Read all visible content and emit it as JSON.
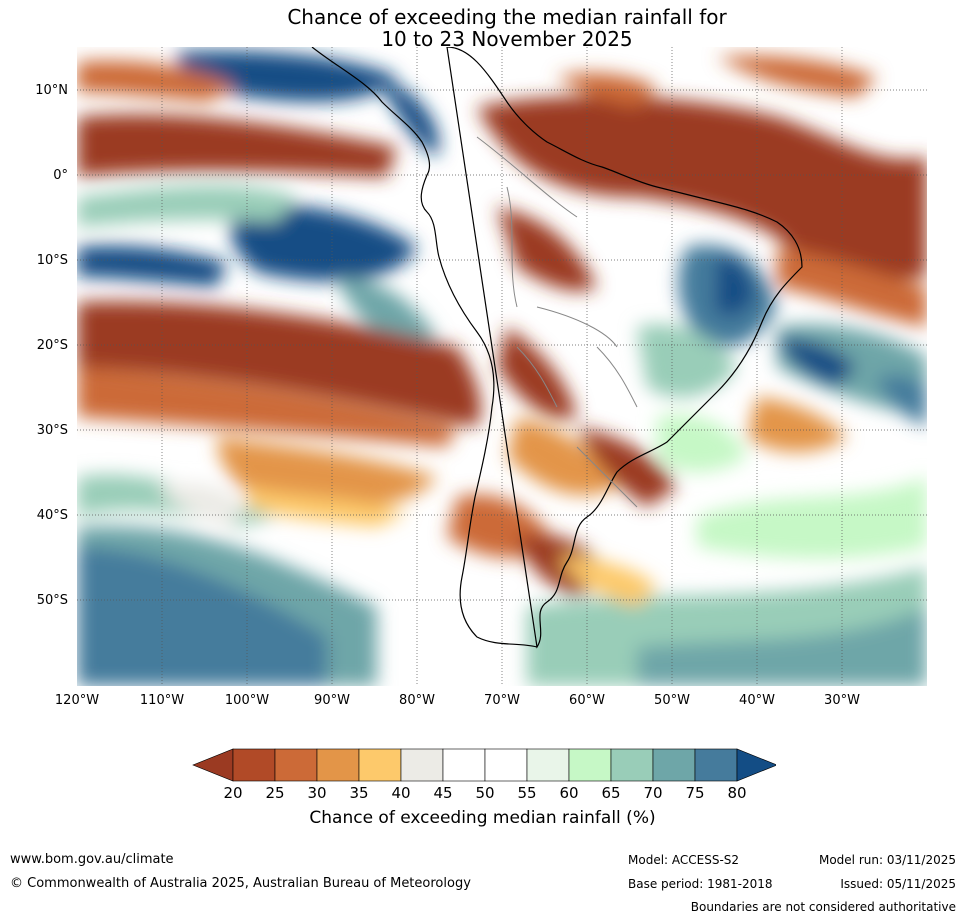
{
  "title": {
    "line1": "Chance of exceeding the median rainfall for",
    "line2": "10 to 23 November 2025"
  },
  "map": {
    "region": "South America and surrounding oceans",
    "lat_labels": [
      "10°N",
      "0°",
      "10°S",
      "20°S",
      "30°S",
      "40°S",
      "50°S"
    ],
    "lon_labels": [
      "120°W",
      "110°W",
      "100°W",
      "90°W",
      "80°W",
      "70°W",
      "60°W",
      "50°W",
      "40°W",
      "30°W"
    ]
  },
  "colorbar": {
    "ticks": [
      "20",
      "25",
      "30",
      "35",
      "40",
      "45",
      "50",
      "55",
      "60",
      "65",
      "70",
      "75",
      "80"
    ],
    "colors": [
      "#9b3a22",
      "#b14a27",
      "#cc6a37",
      "#e39548",
      "#fdc96b",
      "#ecebe6",
      "#ffffff",
      "#ffffff",
      "#e9f5e9",
      "#c6f8c6",
      "#99cdb8",
      "#6ea6a8",
      "#457b9c",
      "#134d85"
    ],
    "label": "Chance of exceeding median rainfall (%)"
  },
  "footer": {
    "url": "www.bom.gov.au/climate",
    "copyright": "© Commonwealth of Australia 2025, Australian Bureau of Meteorology",
    "model": "Model: ACCESS-S2",
    "base_period": "Base period: 1981-2018",
    "model_run": "Model run: 03/11/2025",
    "issued": "Issued: 05/11/2025",
    "disclaimer": "Boundaries are not considered authoritative"
  }
}
